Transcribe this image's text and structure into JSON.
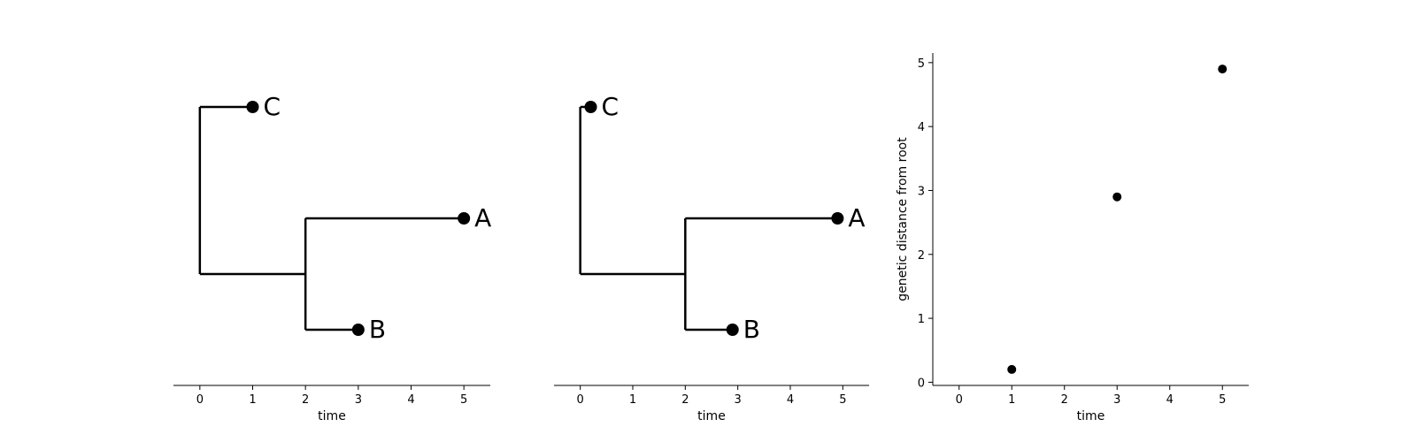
{
  "chart_data": [
    {
      "type": "tree",
      "xlabel": "time",
      "xlim": [
        -0.5,
        5.5
      ],
      "xticks": [
        0,
        1,
        2,
        3,
        4,
        5
      ],
      "branches": [
        {
          "from": "root",
          "to": "C",
          "x0": 0,
          "x1": 1
        },
        {
          "from": "root",
          "to": "AB",
          "x0": 0,
          "x1": 2
        },
        {
          "from": "AB",
          "to": "A",
          "x0": 2,
          "x1": 5
        },
        {
          "from": "AB",
          "to": "B",
          "x0": 2,
          "x1": 3
        }
      ],
      "tips": [
        {
          "label": "C",
          "x": 1
        },
        {
          "label": "A",
          "x": 5
        },
        {
          "label": "B",
          "x": 3
        }
      ]
    },
    {
      "type": "tree",
      "xlabel": "time",
      "xlim": [
        -0.5,
        5.5
      ],
      "xticks": [
        0,
        1,
        2,
        3,
        4,
        5
      ],
      "branches": [
        {
          "from": "root",
          "to": "C",
          "x0": 0,
          "x1": 0.2
        },
        {
          "from": "root",
          "to": "AB",
          "x0": 0,
          "x1": 2
        },
        {
          "from": "AB",
          "to": "A",
          "x0": 2,
          "x1": 4.9
        },
        {
          "from": "AB",
          "to": "B",
          "x0": 2,
          "x1": 2.9
        }
      ],
      "tips": [
        {
          "label": "C",
          "x": 0.2
        },
        {
          "label": "A",
          "x": 4.9
        },
        {
          "label": "B",
          "x": 2.9
        }
      ]
    },
    {
      "type": "scatter",
      "xlabel": "time",
      "ylabel": "genetic distance from root",
      "xlim": [
        -0.5,
        5.5
      ],
      "ylim": [
        -0.05,
        5.15
      ],
      "xticks": [
        0,
        1,
        2,
        3,
        4,
        5
      ],
      "yticks": [
        0,
        1,
        2,
        3,
        4,
        5
      ],
      "points": [
        {
          "x": 1,
          "y": 0.2
        },
        {
          "x": 3,
          "y": 2.9
        },
        {
          "x": 5,
          "y": 4.9
        }
      ]
    }
  ]
}
